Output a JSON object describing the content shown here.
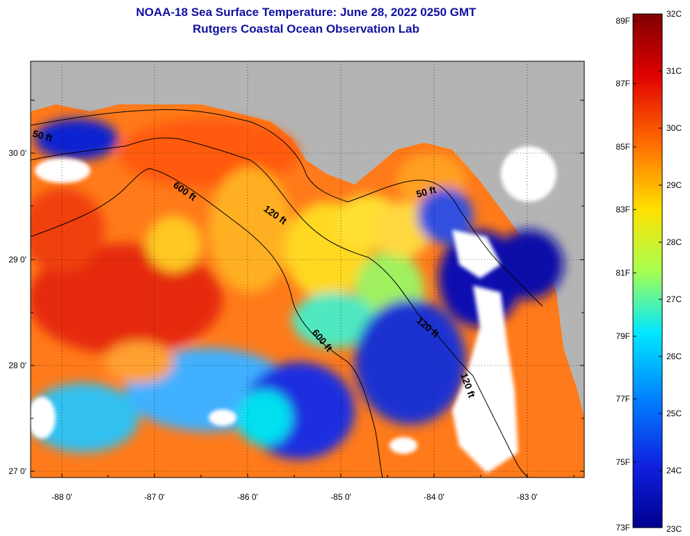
{
  "title": {
    "line1": "NOAA-18 Sea Surface Temperature:  June 28, 2022 0250 GMT",
    "line2": "Rutgers Coastal Ocean Observation Lab"
  },
  "map": {
    "lon_labels": [
      "-88 0'",
      "-87 0'",
      "-86 0'",
      "-85 0'",
      "-84 0'",
      "-83 0'"
    ],
    "lat_labels": [
      "30 0'",
      "29 0'",
      "28 0'",
      "27 0'"
    ],
    "contour_labels": [
      "50 ft",
      "600 ft",
      "120 ft",
      "50 ft",
      "600 ft",
      "120 ft",
      "120 ft"
    ]
  },
  "colorbar": {
    "fahrenheit_labels": [
      "89F",
      "87F",
      "85F",
      "83F",
      "81F",
      "79F",
      "77F",
      "75F",
      "73F"
    ],
    "celsius_labels": [
      "32C",
      "31C",
      "30C",
      "29C",
      "28C",
      "27C",
      "26C",
      "25C",
      "24C",
      "23C"
    ],
    "colors": [
      "#7f0000",
      "#e00000",
      "#ff6a00",
      "#ffe000",
      "#a8ff50",
      "#00e8ff",
      "#0080ff",
      "#1020e0",
      "#00008f"
    ]
  }
}
